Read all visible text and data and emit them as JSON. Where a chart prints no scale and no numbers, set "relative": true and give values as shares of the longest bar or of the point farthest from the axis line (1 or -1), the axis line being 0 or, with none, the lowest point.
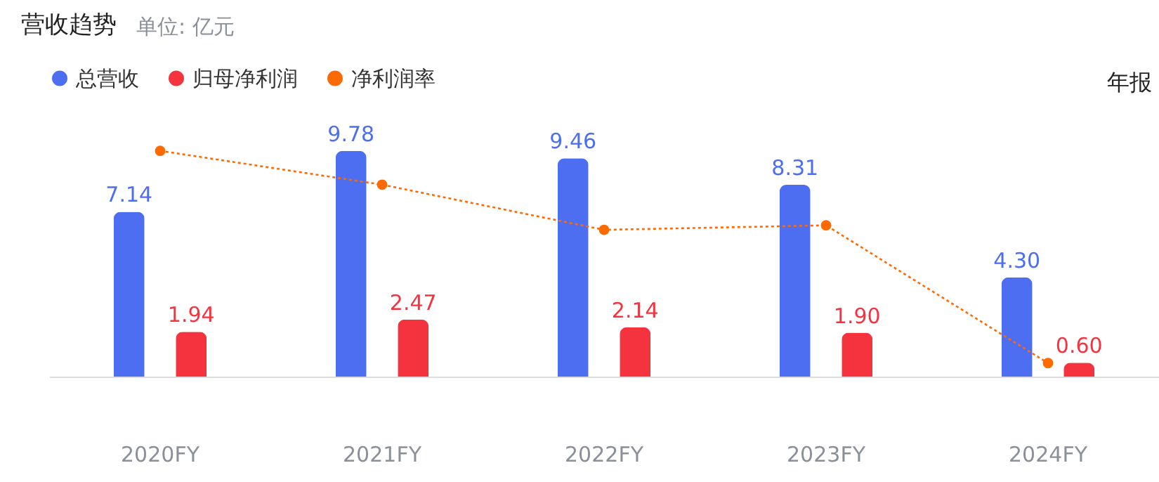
{
  "chart_data": [
    {
      "type": "bar",
      "title": "营收趋势",
      "subtitle": "单位: 亿元",
      "annotations": [
        "年报"
      ],
      "categories": [
        "2020FY",
        "2021FY",
        "2022FY",
        "2023FY",
        "2024FY"
      ],
      "series": [
        {
          "name": "总营收",
          "color": "#4e6ef2",
          "values": [
            7.14,
            9.78,
            9.46,
            8.31,
            4.3
          ],
          "value_labels": [
            "7.14",
            "9.78",
            "9.46",
            "8.31",
            "4.30"
          ]
        },
        {
          "name": "归母净利润",
          "color": "#f5333f",
          "values": [
            1.94,
            2.47,
            2.14,
            1.9,
            0.6
          ],
          "value_labels": [
            "1.94",
            "2.47",
            "2.14",
            "1.90",
            "0.60"
          ]
        }
      ],
      "legend": "top left",
      "grid": false,
      "tick_labels": "x"
    },
    {
      "type": "line",
      "relative": true,
      "categories": [
        "2020FY",
        "2021FY",
        "2022FY",
        "2023FY",
        "2024FY"
      ],
      "series": [
        {
          "name": "净利润率",
          "color": "#ff6a00",
          "values": [
            1,
            0.85,
            0.65,
            0.67,
            0.06
          ]
        }
      ],
      "marker": "circle",
      "line_style": "dotted",
      "tick_labels": false
    }
  ]
}
